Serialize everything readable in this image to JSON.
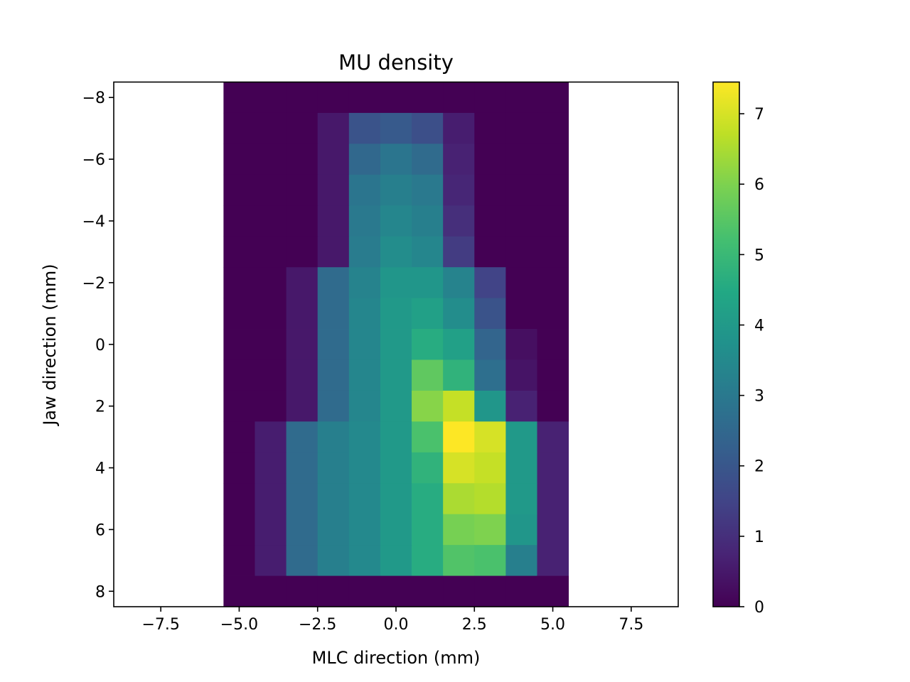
{
  "chart_data": {
    "type": "heatmap",
    "title": "MU density",
    "xlabel": "MLC direction (mm)",
    "ylabel": "Jaw direction (mm)",
    "xlim": [
      -9,
      9
    ],
    "ylim": [
      8.5,
      -8.5
    ],
    "x_ticks": [
      -7.5,
      -5.0,
      -2.5,
      0.0,
      2.5,
      5.0,
      7.5
    ],
    "x_tick_labels": [
      "−7.5",
      "−5.0",
      "−2.5",
      "0.0",
      "2.5",
      "5.0",
      "7.5"
    ],
    "y_ticks": [
      -8,
      -6,
      -4,
      -2,
      0,
      2,
      4,
      6,
      8
    ],
    "y_tick_labels": [
      "−8",
      "−6",
      "−4",
      "−2",
      "0",
      "2",
      "4",
      "6",
      "8"
    ],
    "colormap": "viridis",
    "vmin": 0,
    "vmax": 7.45,
    "colorbar_ticks": [
      0,
      1,
      2,
      3,
      4,
      5,
      6,
      7
    ],
    "colorbar_tick_labels": [
      "0",
      "1",
      "2",
      "3",
      "4",
      "5",
      "6",
      "7"
    ],
    "x_edges": [
      -5.5,
      -4.5,
      -3.5,
      -2.5,
      -1.5,
      -0.5,
      0.5,
      1.5,
      2.5,
      3.5,
      4.5,
      5.5
    ],
    "y_edges": [
      -8.5,
      -7.5,
      -6.5,
      -5.5,
      -4.5,
      -3.5,
      -2.5,
      -1.5,
      -0.5,
      0.5,
      1.5,
      2.5,
      3.5,
      4.5,
      5.5,
      6.5,
      7.5,
      8.5
    ],
    "values": [
      [
        0,
        0,
        0,
        0,
        0,
        0,
        0,
        0,
        0,
        0,
        0
      ],
      [
        0,
        0,
        0,
        0.5,
        1.9,
        2.1,
        1.8,
        0.6,
        0,
        0,
        0
      ],
      [
        0,
        0,
        0,
        0.5,
        2.5,
        2.9,
        2.6,
        0.7,
        0,
        0,
        0
      ],
      [
        0,
        0,
        0,
        0.5,
        2.9,
        3.2,
        3.0,
        0.8,
        0,
        0,
        0
      ],
      [
        0,
        0,
        0,
        0.5,
        3.0,
        3.4,
        3.2,
        1.0,
        0,
        0,
        0
      ],
      [
        0,
        0,
        0,
        0.5,
        3.1,
        3.6,
        3.4,
        1.3,
        0,
        0,
        0
      ],
      [
        0,
        0,
        0.5,
        2.6,
        3.3,
        3.9,
        3.9,
        3.3,
        1.5,
        0,
        0
      ],
      [
        0,
        0,
        0.5,
        2.6,
        3.4,
        4.0,
        4.2,
        3.6,
        1.9,
        0,
        0
      ],
      [
        0,
        0,
        0.5,
        2.6,
        3.4,
        4.0,
        4.6,
        4.2,
        2.4,
        0.3,
        0
      ],
      [
        0,
        0,
        0.5,
        2.6,
        3.4,
        4.0,
        5.6,
        4.8,
        2.7,
        0.4,
        0
      ],
      [
        0,
        0,
        0.5,
        2.6,
        3.4,
        4.0,
        6.1,
        6.8,
        3.9,
        0.7,
        0
      ],
      [
        0,
        0.6,
        2.6,
        3.2,
        3.5,
        4.0,
        5.3,
        7.45,
        7.0,
        4.0,
        0.7
      ],
      [
        0,
        0.6,
        2.6,
        3.2,
        3.5,
        4.0,
        4.8,
        7.0,
        6.8,
        4.0,
        0.7
      ],
      [
        0,
        0.6,
        2.6,
        3.2,
        3.5,
        4.0,
        4.6,
        6.5,
        6.6,
        4.0,
        0.7
      ],
      [
        0,
        0.6,
        2.6,
        3.2,
        3.5,
        4.0,
        4.6,
        5.9,
        6.0,
        3.9,
        0.7
      ],
      [
        0,
        0.6,
        2.6,
        3.2,
        3.5,
        4.0,
        4.6,
        5.4,
        5.3,
        3.2,
        0.7
      ],
      [
        0,
        0,
        0,
        0,
        0,
        0,
        0,
        0,
        0,
        0,
        0
      ]
    ],
    "grid": false,
    "legend": "none"
  }
}
